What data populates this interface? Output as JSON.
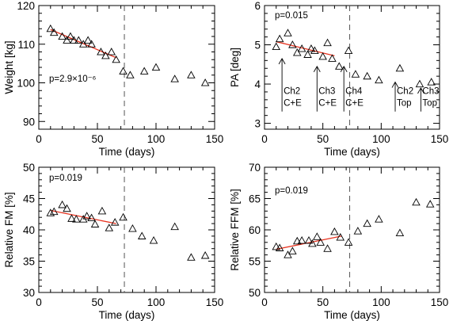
{
  "chart_data": [
    {
      "id": "weight",
      "type": "scatter",
      "xlabel": "Time (days)",
      "ylabel": "Weight [kg]",
      "xlim": [
        0,
        150
      ],
      "ylim": [
        88,
        120
      ],
      "xticks": [
        0,
        50,
        100,
        150
      ],
      "yticks": [
        90,
        100,
        110,
        120
      ],
      "grid": false,
      "annotation": "p=2.9×10⁻⁶",
      "points": [
        {
          "x": 10,
          "y": 114
        },
        {
          "x": 13,
          "y": 113
        },
        {
          "x": 20,
          "y": 112
        },
        {
          "x": 24,
          "y": 111
        },
        {
          "x": 27,
          "y": 112
        },
        {
          "x": 30,
          "y": 111
        },
        {
          "x": 34,
          "y": 111
        },
        {
          "x": 38,
          "y": 110
        },
        {
          "x": 42,
          "y": 111
        },
        {
          "x": 45,
          "y": 110
        },
        {
          "x": 53,
          "y": 108
        },
        {
          "x": 57,
          "y": 107
        },
        {
          "x": 62,
          "y": 108
        },
        {
          "x": 66,
          "y": 106
        },
        {
          "x": 72,
          "y": 103
        },
        {
          "x": 78,
          "y": 102
        },
        {
          "x": 90,
          "y": 103
        },
        {
          "x": 100,
          "y": 104
        },
        {
          "x": 116,
          "y": 101
        },
        {
          "x": 130,
          "y": 102
        },
        {
          "x": 142,
          "y": 100
        }
      ],
      "fit": {
        "x": [
          10,
          66
        ],
        "y": [
          113.8,
          106.5
        ],
        "color": "#e8321e"
      },
      "vline_x": 73
    },
    {
      "id": "pa",
      "type": "scatter",
      "xlabel": "Time (days)",
      "ylabel": "PA [deg]",
      "xlim": [
        0,
        150
      ],
      "ylim": [
        2.85,
        6
      ],
      "xticks": [
        0,
        50,
        100,
        150
      ],
      "yticks": [
        3,
        4,
        5,
        6
      ],
      "grid": false,
      "annotation": "p=0.015",
      "points": [
        {
          "x": 10,
          "y": 4.95
        },
        {
          "x": 13,
          "y": 5.15
        },
        {
          "x": 20,
          "y": 5.3
        },
        {
          "x": 24,
          "y": 5.0
        },
        {
          "x": 28,
          "y": 4.8
        },
        {
          "x": 32,
          "y": 4.9
        },
        {
          "x": 37,
          "y": 4.75
        },
        {
          "x": 40,
          "y": 4.9
        },
        {
          "x": 43,
          "y": 4.85
        },
        {
          "x": 50,
          "y": 4.7
        },
        {
          "x": 54,
          "y": 5.05
        },
        {
          "x": 58,
          "y": 4.65
        },
        {
          "x": 64,
          "y": 4.45
        },
        {
          "x": 72,
          "y": 4.85
        },
        {
          "x": 78,
          "y": 4.25
        },
        {
          "x": 88,
          "y": 4.2
        },
        {
          "x": 98,
          "y": 4.1
        },
        {
          "x": 116,
          "y": 4.4
        },
        {
          "x": 133,
          "y": 4.0
        },
        {
          "x": 143,
          "y": 4.05
        }
      ],
      "fit": {
        "x": [
          10,
          60
        ],
        "y": [
          5.08,
          4.72
        ],
        "color": "#e8321e"
      },
      "vline_x": 73,
      "arrows": [
        {
          "x": 15,
          "y_from": 3.3,
          "y_to": 4.65,
          "label": [
            "Ch2",
            "C+E"
          ]
        },
        {
          "x": 45,
          "y_from": 3.3,
          "y_to": 4.45,
          "label": [
            "Ch3",
            "C+E"
          ]
        },
        {
          "x": 68,
          "y_from": 3.3,
          "y_to": 4.45,
          "label": [
            "Ch4",
            "C+E"
          ]
        },
        {
          "x": 112,
          "y_from": 3.3,
          "y_to": 4.05,
          "label": [
            "Ch2",
            "Top"
          ]
        },
        {
          "x": 134,
          "y_from": 3.3,
          "y_to": 3.9,
          "label": [
            "Ch3",
            "Top"
          ]
        }
      ]
    },
    {
      "id": "fm",
      "type": "scatter",
      "xlabel": "Time (days)",
      "ylabel": "Relative FM [%]",
      "xlim": [
        0,
        150
      ],
      "ylim": [
        30,
        50
      ],
      "xticks": [
        0,
        50,
        100,
        150
      ],
      "yticks": [
        30,
        35,
        40,
        45,
        50
      ],
      "grid": false,
      "annotation": "p=0.019",
      "points": [
        {
          "x": 10,
          "y": 42.7
        },
        {
          "x": 13,
          "y": 42.9
        },
        {
          "x": 20,
          "y": 44.0
        },
        {
          "x": 24,
          "y": 43.4
        },
        {
          "x": 28,
          "y": 41.8
        },
        {
          "x": 32,
          "y": 41.7
        },
        {
          "x": 38,
          "y": 41.7
        },
        {
          "x": 41,
          "y": 42.2
        },
        {
          "x": 45,
          "y": 41.9
        },
        {
          "x": 48,
          "y": 40.9
        },
        {
          "x": 54,
          "y": 43.0
        },
        {
          "x": 60,
          "y": 40.3
        },
        {
          "x": 65,
          "y": 41.2
        },
        {
          "x": 72,
          "y": 42.0
        },
        {
          "x": 80,
          "y": 40.2
        },
        {
          "x": 88,
          "y": 39.0
        },
        {
          "x": 98,
          "y": 38.3
        },
        {
          "x": 116,
          "y": 40.5
        },
        {
          "x": 130,
          "y": 35.6
        },
        {
          "x": 142,
          "y": 35.9
        }
      ],
      "fit": {
        "x": [
          10,
          66
        ],
        "y": [
          43.1,
          41.0
        ],
        "color": "#e8321e"
      },
      "vline_x": 73
    },
    {
      "id": "ffm",
      "type": "scatter",
      "xlabel": "Time (days)",
      "ylabel": "Relative FFM [%]",
      "xlim": [
        0,
        150
      ],
      "ylim": [
        50,
        70
      ],
      "xticks": [
        0,
        50,
        100,
        150
      ],
      "yticks": [
        50,
        55,
        60,
        65,
        70
      ],
      "grid": false,
      "annotation": "p=0.019",
      "points": [
        {
          "x": 10,
          "y": 57.3
        },
        {
          "x": 13,
          "y": 57.1
        },
        {
          "x": 20,
          "y": 56.0
        },
        {
          "x": 24,
          "y": 56.6
        },
        {
          "x": 28,
          "y": 58.2
        },
        {
          "x": 32,
          "y": 58.3
        },
        {
          "x": 38,
          "y": 58.3
        },
        {
          "x": 41,
          "y": 57.8
        },
        {
          "x": 45,
          "y": 58.9
        },
        {
          "x": 48,
          "y": 58.0
        },
        {
          "x": 54,
          "y": 57.0
        },
        {
          "x": 60,
          "y": 59.7
        },
        {
          "x": 65,
          "y": 58.8
        },
        {
          "x": 72,
          "y": 58.0
        },
        {
          "x": 80,
          "y": 59.8
        },
        {
          "x": 88,
          "y": 61.0
        },
        {
          "x": 98,
          "y": 61.7
        },
        {
          "x": 116,
          "y": 59.5
        },
        {
          "x": 130,
          "y": 64.4
        },
        {
          "x": 142,
          "y": 64.1
        }
      ],
      "fit": {
        "x": [
          10,
          66
        ],
        "y": [
          56.9,
          59.0
        ],
        "color": "#e8321e"
      },
      "vline_x": 73
    }
  ]
}
